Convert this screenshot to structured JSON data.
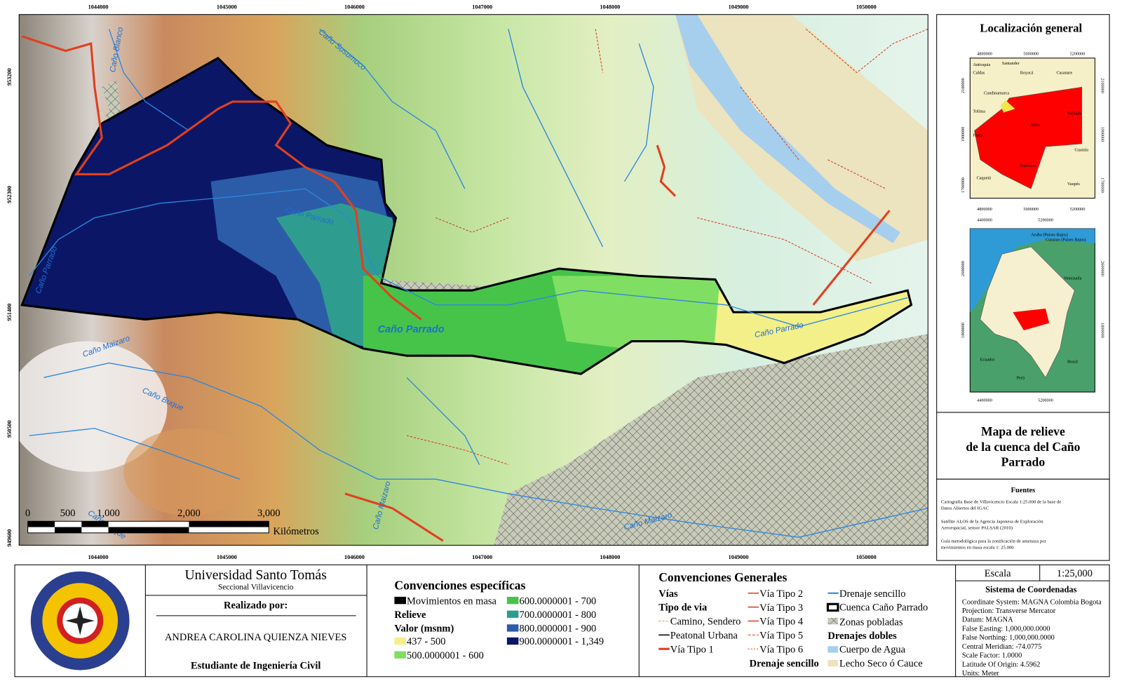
{
  "map": {
    "x_ticks": [
      "1044000",
      "1045000",
      "1046000",
      "1047000",
      "1048000",
      "1049000",
      "1050000"
    ],
    "y_ticks": [
      "953200",
      "952300",
      "951400",
      "950500",
      "949600"
    ],
    "feature_labels": [
      "Caño Blanco",
      "Caño Susumuco",
      "Caño Parrado",
      "Caño Parrado",
      "Caño Parrado",
      "Caño Parrado",
      "Caño Maizaro",
      "Caño Buque",
      "Caño Maizaro",
      "Caño Maizaro",
      "Caño Buque"
    ],
    "scale_bar": {
      "ticks": [
        "0",
        "500",
        "1,000",
        "2,000",
        "3,000"
      ],
      "unit": "Kilómetros"
    }
  },
  "side_panel": {
    "locator_title": "Localización general",
    "inset_meta": {
      "coords": [
        "4800000",
        "5000000",
        "5200000",
        "4800000",
        "5000000",
        "5200000",
        "2100000",
        "1900000",
        "1700000",
        "2100000",
        "1900000",
        "1700000"
      ],
      "labels": [
        "Antioquia",
        "Santander",
        "Caldas",
        "Boyacá",
        "Casanare",
        "Cundinamarca",
        "Tolima",
        "Meta",
        "Vichada",
        "Huila",
        "Guainía",
        "Guaviare",
        "Caquetá",
        "Vaupés"
      ]
    },
    "inset_colombia": {
      "coords": [
        "4400000",
        "5200000",
        "4400000",
        "5200000",
        "2600000",
        "1800000",
        "2600000",
        "1800000"
      ],
      "labels": [
        "Aruba (Países Bajos)",
        "Curazao (Países Bajos)",
        "Venezuela",
        "Ecuador",
        "Perú",
        "Brasil"
      ]
    },
    "map_title": [
      "Mapa de relieve",
      "de la cuenca del Caño",
      "Parrado"
    ],
    "sources": {
      "title": "Fuentes",
      "items": [
        [
          "Cartografía Base de Villavicencio Escala 1:25.000 de la base de",
          "Datos Abiertos del IGAC"
        ],
        [
          "Satélite ALOS de la Agencia Japonesa de Exploración",
          "Aeroespacial, sensor PALSAR (2010)"
        ],
        [
          "Guía metodológica para la zonificación de amenaza por",
          "movimientos en masa escala 1: 25.000"
        ]
      ]
    }
  },
  "footer": {
    "university": {
      "name": "Universidad Santo Tomás",
      "campus": "Seccional Villavicencio",
      "made_by": "Realizado por:",
      "author": "ANDREA CAROLINA QUIENZA NIEVES",
      "role": "Estudiante de Ingeniería Civil"
    },
    "specific_legend": {
      "title": "Convenciones específicas",
      "mass_movements": "Movimientos en masa",
      "relief": "Relieve",
      "value_heading": "Valor (msnm)",
      "classes": [
        "437 - 500",
        "500.0000001 - 600",
        "600.0000001 - 700",
        "700.0000001 - 800",
        "800.0000001 - 900",
        "900.0000001 - 1,349"
      ]
    },
    "general_legend": {
      "title": "Convenciones Generales",
      "roads": "Vías",
      "road_type": "Tipo de via",
      "road_items": [
        "Camino, Sendero",
        "Peatonal Urbana",
        "Vía Tipo 1",
        "Vía Tipo 2",
        "Vía Tipo 3",
        "Vía Tipo 4",
        "Vía Tipo 5",
        "Vía Tipo 6"
      ],
      "simple_drainage_heading": "Drenaje sencillo",
      "simple_drainage": "Drenaje sencillo",
      "basin": "Cuenca Caño Parrado",
      "populated": "Zonas pobladas",
      "double_drainage": "Drenajes dobles",
      "water_body": "Cuerpo de Agua",
      "dry_bed": "Lecho Seco ó Cauce"
    },
    "scale": {
      "label": "Escala",
      "value": "1:25,000"
    },
    "coordinate_system": {
      "title": "Sistema de Coordenadas",
      "lines": [
        "Coordinate System: MAGNA Colombia Bogota",
        "Projection: Transverse Mercator",
        "Datum: MAGNA",
        "False Easting: 1,000,000.0000",
        "False Northing: 1,000,000.0000",
        "Central Meridian: -74.0775",
        "Scale Factor: 1.0000",
        "Latitude Of Origin: 4.5962",
        "Units: Meter"
      ]
    }
  }
}
